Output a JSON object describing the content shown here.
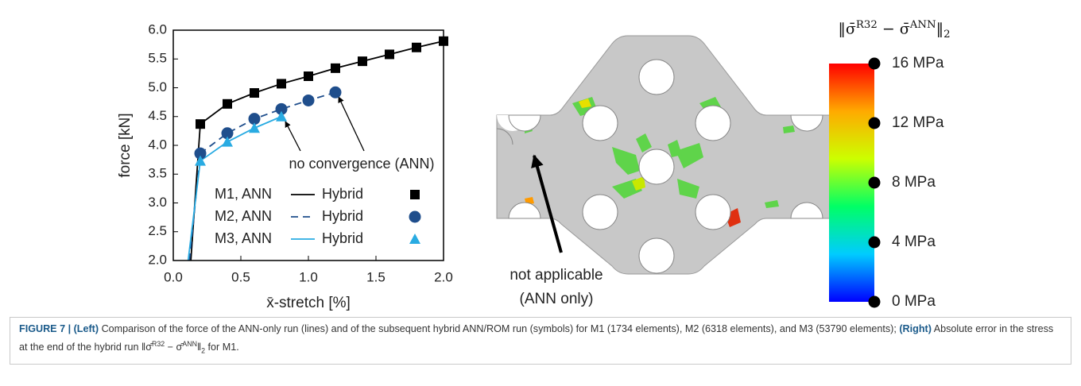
{
  "chart_data": [
    {
      "type": "line",
      "xlabel": "x̄-stretch [%]",
      "ylabel": "force [kN]",
      "xlim": [
        0,
        2
      ],
      "ylim": [
        2,
        6
      ],
      "xticks": [
        {
          "value": 0,
          "label": "0.0"
        },
        {
          "value": 0.5,
          "label": "0.5"
        },
        {
          "value": 1,
          "label": "1.0"
        },
        {
          "value": 1.5,
          "label": "1.5"
        },
        {
          "value": 2,
          "label": "2.0"
        }
      ],
      "yticks": [
        {
          "value": 2,
          "label": "2.0"
        },
        2.5,
        {
          "value": 3,
          "label": "3.0"
        },
        3.5,
        {
          "value": 4,
          "label": "4.0"
        },
        4.5,
        {
          "value": 5,
          "label": "5.0"
        },
        5.5,
        {
          "value": 6,
          "label": "6.0"
        }
      ],
      "series": [
        {
          "name": "M1, ANN",
          "color": "#000000",
          "dash": "solid",
          "x": [
            0.13,
            0.2,
            0.4,
            0.6,
            0.8,
            1.0,
            1.2,
            1.4,
            1.6,
            1.8,
            2.0
          ],
          "values": [
            2.0,
            4.37,
            4.72,
            4.91,
            5.07,
            5.2,
            5.34,
            5.46,
            5.58,
            5.7,
            5.81
          ]
        },
        {
          "name": "M2, ANN",
          "color": "#1f4e8c",
          "dash": "dashed",
          "x": [
            0.12,
            0.2,
            0.4,
            0.6,
            0.8,
            1.0,
            1.2
          ],
          "values": [
            2.0,
            3.86,
            4.21,
            4.46,
            4.63,
            4.78,
            4.92
          ]
        },
        {
          "name": "M3, ANN",
          "color": "#29abe2",
          "dash": "solid",
          "x": [
            0.11,
            0.2,
            0.4,
            0.6,
            0.8
          ],
          "values": [
            2.0,
            3.73,
            4.06,
            4.3,
            4.5
          ]
        },
        {
          "name": "Hybrid",
          "color": "#000000",
          "marker": "square",
          "x": [
            0.2,
            0.4,
            0.6,
            0.8,
            1.0,
            1.2,
            1.4,
            1.6,
            1.8,
            2.0
          ],
          "values": [
            4.37,
            4.72,
            4.91,
            5.07,
            5.2,
            5.34,
            5.46,
            5.58,
            5.7,
            5.81
          ]
        },
        {
          "name": "Hybrid",
          "color": "#1f4e8c",
          "marker": "circle",
          "x": [
            0.2,
            0.4,
            0.6,
            0.8,
            1.0,
            1.2
          ],
          "values": [
            3.86,
            4.21,
            4.46,
            4.63,
            4.78,
            4.92
          ]
        },
        {
          "name": "Hybrid",
          "color": "#29abe2",
          "marker": "triangle",
          "x": [
            0.2,
            0.4,
            0.6,
            0.8
          ],
          "values": [
            3.73,
            4.06,
            4.3,
            4.5
          ]
        }
      ],
      "annotations": [
        "no convergence (ANN)"
      ]
    },
    {
      "type": "colorbar",
      "title": [
        {
          "text": "‖σ̄"
        },
        {
          "text": "R32",
          "style": "sup"
        },
        {
          "text": " − σ̄"
        },
        {
          "text": "ANN",
          "style": "sup"
        },
        {
          "text": "‖"
        },
        {
          "text": "2",
          "style": "sub"
        }
      ],
      "ylim": [
        0,
        16
      ],
      "yticks": [
        {
          "value": 0,
          "label": "0 MPa"
        },
        {
          "value": 4,
          "label": "4 MPa"
        },
        {
          "value": 8,
          "label": "8 MPa"
        },
        {
          "value": 12,
          "label": "12 MPa"
        },
        {
          "value": 16,
          "label": "16 MPa"
        }
      ],
      "colors": [
        "#0000ff",
        "#00ccff",
        "#00ff66",
        "#ccff00",
        "#ffaa00",
        "#ff0000"
      ]
    }
  ],
  "right_panel": {
    "annotation": [
      "not applicable",
      "(ANN only)"
    ]
  },
  "caption": [
    {
      "text": "FIGURE 7 | (Left)",
      "style": "bold"
    },
    {
      "text": " Comparison of the force of the ANN-only run (lines) and of the subsequent hybrid ANN/ROM run (symbols) for M1 (1734 elements), M2 (6318 elements), and M3 (53790 elements); "
    },
    {
      "text": "(Right)",
      "style": "bold"
    },
    {
      "text": " Absolute error in the stress at the end of the hybrid run ‖σ̄"
    },
    {
      "text": "R32",
      "style": "sup"
    },
    {
      "text": " − σ̄"
    },
    {
      "text": "ANN",
      "style": "sup"
    },
    {
      "text": "‖"
    },
    {
      "text": "2",
      "style": "sub"
    },
    {
      "text": " for M1."
    }
  ]
}
